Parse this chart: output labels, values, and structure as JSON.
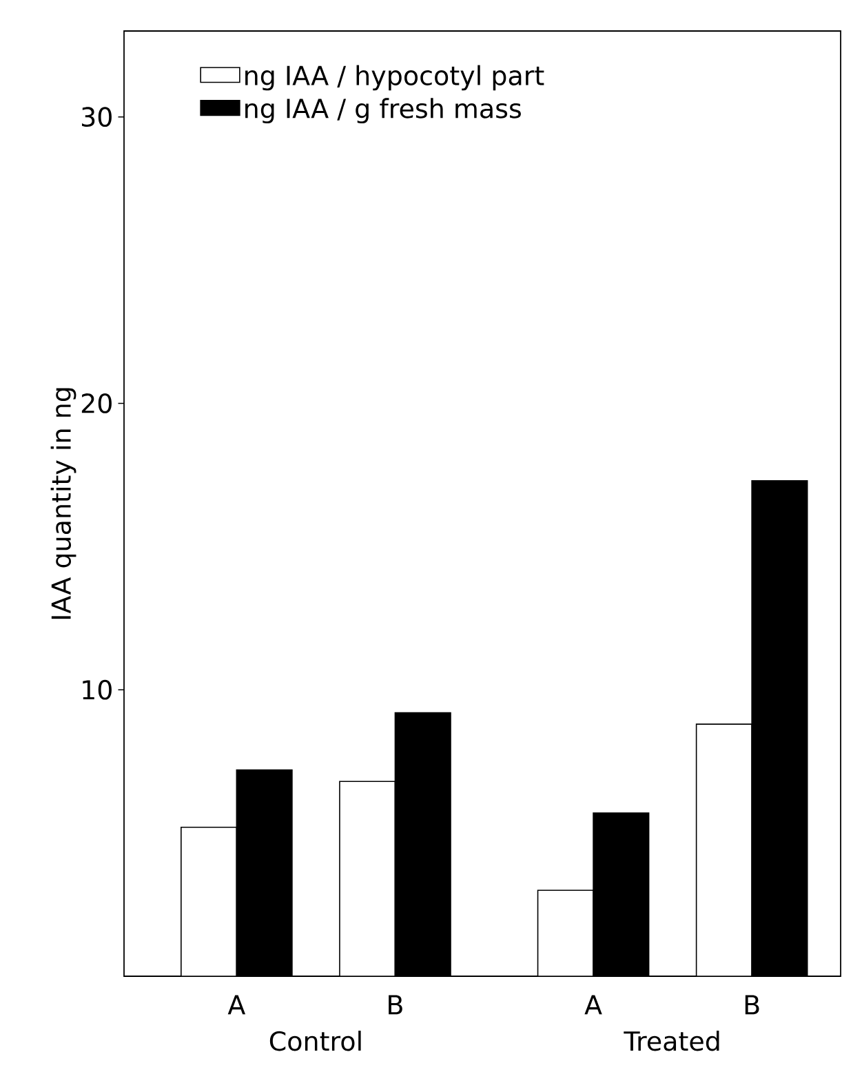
{
  "chart_data": {
    "type": "bar",
    "ylabel": "IAA quantity in ng",
    "categories": [
      "A",
      "B",
      "A",
      "B"
    ],
    "series": [
      {
        "name": "ng IAA / hypocotyl part",
        "color": "#ffffff",
        "values": [
          5.2,
          6.8,
          3.0,
          8.8
        ]
      },
      {
        "name": "ng IAA / g fresh mass",
        "color": "#000000",
        "values": [
          7.2,
          9.2,
          5.7,
          17.3
        ]
      }
    ],
    "ylim": [
      0,
      33
    ],
    "yticks": [
      10,
      20,
      30
    ],
    "legend": "top left",
    "annotations": [
      "Control",
      "Treated"
    ]
  }
}
